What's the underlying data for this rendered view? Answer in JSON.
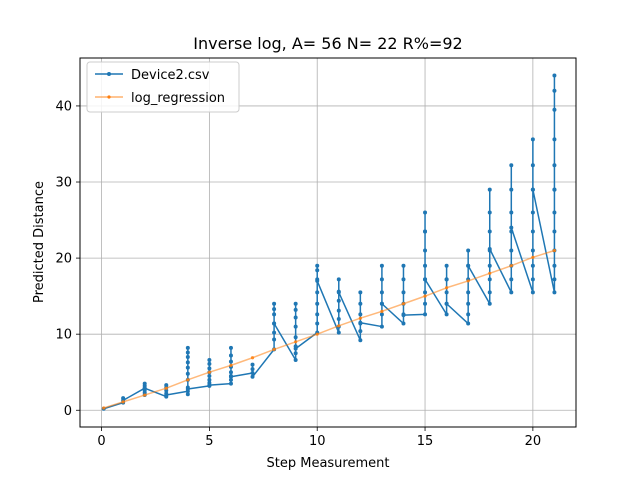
{
  "chart_data": {
    "type": "line",
    "title": "Inverse log, A= 56 N= 22 R%=92",
    "xlabel": "Step Measurement",
    "ylabel": "Predicted Distance",
    "xlim": [
      -1.0,
      22.0
    ],
    "ylim": [
      -2.2,
      46.3
    ],
    "xticks": [
      0,
      5,
      10,
      15,
      20
    ],
    "yticks": [
      0,
      10,
      20,
      30,
      40
    ],
    "grid": true,
    "legend_position": "top-left",
    "series": [
      {
        "name": "Device2.csv",
        "color": "#1f77b4",
        "points": [
          [
            0.1,
            0.2
          ],
          [
            1,
            1.0
          ],
          [
            1,
            1.6
          ],
          [
            1,
            1.3
          ],
          [
            2,
            2.9
          ],
          [
            2,
            3.2
          ],
          [
            2,
            3.5
          ],
          [
            2,
            2.6
          ],
          [
            2,
            2.3
          ],
          [
            2,
            2.0
          ],
          [
            2,
            2.9
          ],
          [
            3,
            1.8
          ],
          [
            3,
            2.2
          ],
          [
            3,
            2.6
          ],
          [
            3,
            3.0
          ],
          [
            3,
            3.3
          ],
          [
            3,
            2.0
          ],
          [
            4,
            2.5
          ],
          [
            4,
            2.1
          ],
          [
            4,
            3.0
          ],
          [
            4,
            4.0
          ],
          [
            4,
            4.8
          ],
          [
            4,
            5.6
          ],
          [
            4,
            6.3
          ],
          [
            4,
            7.0
          ],
          [
            4,
            7.6
          ],
          [
            4,
            8.2
          ],
          [
            4,
            2.8
          ],
          [
            5,
            3.2
          ],
          [
            5,
            3.6
          ],
          [
            5,
            4.0
          ],
          [
            5,
            4.5
          ],
          [
            5,
            5.0
          ],
          [
            5,
            5.5
          ],
          [
            5,
            6.1
          ],
          [
            5,
            6.6
          ],
          [
            5,
            3.3
          ],
          [
            6,
            3.5
          ],
          [
            6,
            4.0
          ],
          [
            6,
            4.5
          ],
          [
            6,
            5.0
          ],
          [
            6,
            5.7
          ],
          [
            6,
            6.4
          ],
          [
            6,
            7.2
          ],
          [
            6,
            8.2
          ],
          [
            6,
            4.4
          ],
          [
            7,
            4.9
          ],
          [
            7,
            5.4
          ],
          [
            7,
            6.0
          ],
          [
            7,
            4.4
          ],
          [
            8,
            8.0
          ],
          [
            8,
            9.3
          ],
          [
            8,
            10.2
          ],
          [
            8,
            11.4
          ],
          [
            8,
            12.6
          ],
          [
            8,
            13.3
          ],
          [
            8,
            14.0
          ],
          [
            8,
            11.4
          ],
          [
            9,
            6.6
          ],
          [
            9,
            7.5
          ],
          [
            9,
            8.4
          ],
          [
            9,
            9.6
          ],
          [
            9,
            11.0
          ],
          [
            9,
            12.2
          ],
          [
            9,
            13.2
          ],
          [
            9,
            14.0
          ],
          [
            9,
            8.1
          ],
          [
            10,
            10.2
          ],
          [
            10,
            11.4
          ],
          [
            10,
            12.6
          ],
          [
            10,
            14.0
          ],
          [
            10,
            15.5
          ],
          [
            10,
            17.2
          ],
          [
            10,
            18.4
          ],
          [
            10,
            19.0
          ],
          [
            10,
            17.0
          ],
          [
            11,
            10.2
          ],
          [
            11,
            11.0
          ],
          [
            11,
            12.0
          ],
          [
            11,
            13.1
          ],
          [
            11,
            14.4
          ],
          [
            11,
            15.6
          ],
          [
            11,
            17.2
          ],
          [
            11,
            15.5
          ],
          [
            12,
            9.2
          ],
          [
            12,
            10.4
          ],
          [
            12,
            11.4
          ],
          [
            12,
            12.6
          ],
          [
            12,
            14.0
          ],
          [
            12,
            15.5
          ],
          [
            12,
            11.5
          ],
          [
            13,
            11.0
          ],
          [
            13,
            12.6
          ],
          [
            13,
            14.0
          ],
          [
            13,
            15.5
          ],
          [
            13,
            17.2
          ],
          [
            13,
            19.0
          ],
          [
            13,
            14.0
          ],
          [
            14,
            11.4
          ],
          [
            14,
            12.6
          ],
          [
            14,
            14.0
          ],
          [
            14,
            15.5
          ],
          [
            14,
            17.2
          ],
          [
            14,
            19.0
          ],
          [
            14,
            12.5
          ],
          [
            15,
            12.6
          ],
          [
            15,
            14.0
          ],
          [
            15,
            15.5
          ],
          [
            15,
            17.2
          ],
          [
            15,
            19.0
          ],
          [
            15,
            21.0
          ],
          [
            15,
            23.5
          ],
          [
            15,
            26.0
          ],
          [
            15,
            23.5
          ],
          [
            15,
            17.2
          ],
          [
            16,
            12.6
          ],
          [
            16,
            14.0
          ],
          [
            16,
            15.5
          ],
          [
            16,
            17.2
          ],
          [
            16,
            19.0
          ],
          [
            16,
            17.2
          ],
          [
            16,
            14.0
          ],
          [
            17,
            11.4
          ],
          [
            17,
            12.6
          ],
          [
            17,
            14.0
          ],
          [
            17,
            15.5
          ],
          [
            17,
            17.2
          ],
          [
            17,
            19.0
          ],
          [
            17,
            21.0
          ],
          [
            17,
            19.0
          ],
          [
            18,
            14.0
          ],
          [
            18,
            15.5
          ],
          [
            18,
            17.2
          ],
          [
            18,
            19.0
          ],
          [
            18,
            21.0
          ],
          [
            18,
            23.5
          ],
          [
            18,
            26.0
          ],
          [
            18,
            29.0
          ],
          [
            18,
            21.2
          ],
          [
            19,
            15.5
          ],
          [
            19,
            17.2
          ],
          [
            19,
            19.0
          ],
          [
            19,
            21.0
          ],
          [
            19,
            23.5
          ],
          [
            19,
            26.0
          ],
          [
            19,
            29.0
          ],
          [
            19,
            32.2
          ],
          [
            19,
            24.0
          ],
          [
            20,
            15.5
          ],
          [
            20,
            17.2
          ],
          [
            20,
            19.0
          ],
          [
            20,
            21.0
          ],
          [
            20,
            23.5
          ],
          [
            20,
            26.0
          ],
          [
            20,
            29.0
          ],
          [
            20,
            32.2
          ],
          [
            20,
            35.6
          ],
          [
            20,
            29.0
          ],
          [
            21,
            15.5
          ],
          [
            21,
            17.2
          ],
          [
            21,
            19.0
          ],
          [
            21,
            21.0
          ],
          [
            21,
            23.5
          ],
          [
            21,
            26.0
          ],
          [
            21,
            29.0
          ],
          [
            21,
            32.2
          ],
          [
            21,
            35.6
          ],
          [
            21,
            39.5
          ],
          [
            21,
            42.0
          ],
          [
            21,
            44.0
          ],
          [
            21,
            29.0
          ]
        ]
      },
      {
        "name": "log_regression",
        "color": "#ff7f0e",
        "points": [
          [
            0.1,
            0.3
          ],
          [
            1,
            1.1
          ],
          [
            2,
            2.0
          ],
          [
            3,
            2.9
          ],
          [
            4,
            4.0
          ],
          [
            5,
            5.0
          ],
          [
            6,
            5.9
          ],
          [
            7,
            6.9
          ],
          [
            8,
            8.0
          ],
          [
            9,
            9.0
          ],
          [
            10,
            10.0
          ],
          [
            11,
            11.1
          ],
          [
            12,
            12.1
          ],
          [
            13,
            13.0
          ],
          [
            14,
            14.0
          ],
          [
            15,
            15.0
          ],
          [
            16,
            16.1
          ],
          [
            17,
            17.0
          ],
          [
            18,
            18.0
          ],
          [
            19,
            19.0
          ],
          [
            20,
            20.1
          ],
          [
            21,
            21.0
          ]
        ]
      }
    ]
  }
}
